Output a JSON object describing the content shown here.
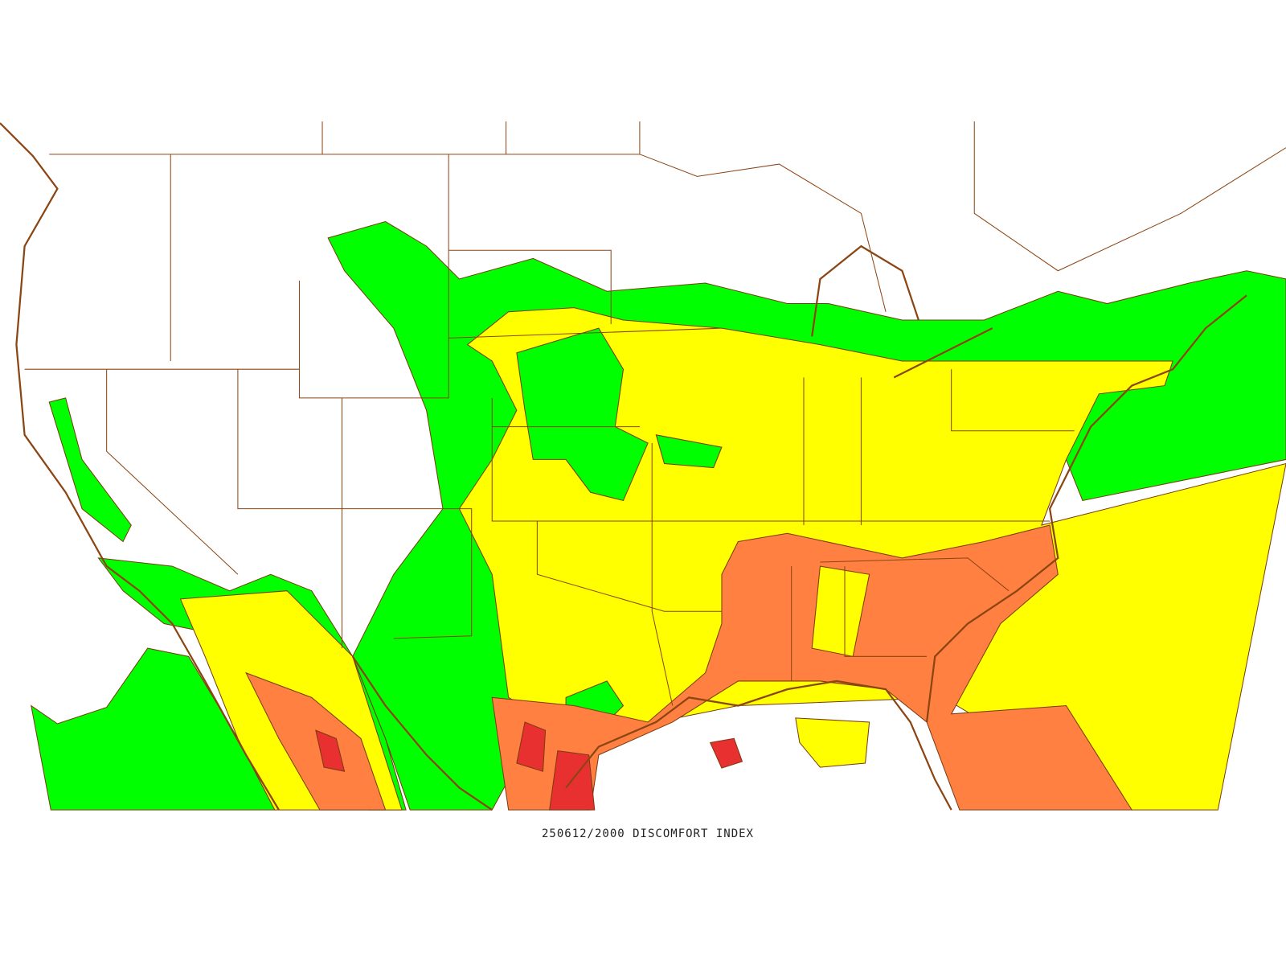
{
  "caption": "250612/2000 DISCOMFORT INDEX"
}
